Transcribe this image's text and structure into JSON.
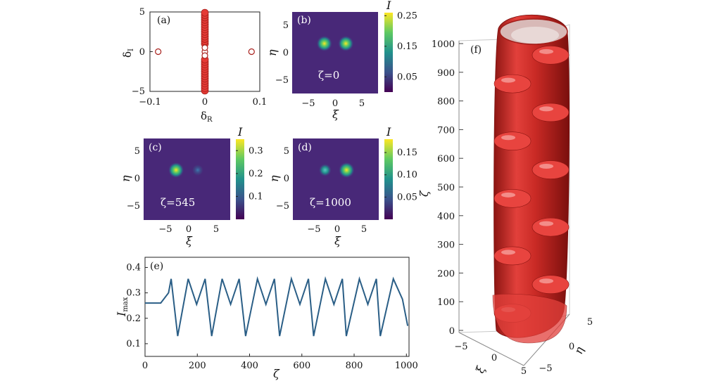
{
  "colors": {
    "red": "#e53a35",
    "red_dark": "#a8201c",
    "viridis_bg": "#482878",
    "line": "#2a5e86"
  },
  "panels": {
    "a": {
      "label": "(a)"
    },
    "b": {
      "label": "(b)",
      "caption": "ζ=0"
    },
    "c": {
      "label": "(c)",
      "caption": "ζ=545"
    },
    "d": {
      "label": "(d)",
      "caption": "ζ=1000"
    },
    "e": {
      "label": "(e)"
    },
    "f": {
      "label": "(f)"
    }
  },
  "chart_data": [
    {
      "id": "a",
      "type": "scatter",
      "xlabel": "δ",
      "xlabel_sub": "R",
      "ylabel": "δ",
      "ylabel_sub": "I",
      "xlim": [
        -0.1,
        0.1
      ],
      "ylim": [
        -5,
        5
      ],
      "xticks": [
        "−0.1",
        "0",
        "0.1"
      ],
      "yticks": [
        "−5",
        "0",
        "5"
      ],
      "series": [
        {
          "style": "filled",
          "points": [
            [
              0,
              -4.9
            ],
            [
              0,
              -4.6
            ],
            [
              0,
              -4.3
            ],
            [
              0,
              -4.0
            ],
            [
              0,
              -3.7
            ],
            [
              0,
              -3.4
            ],
            [
              0,
              -3.1
            ],
            [
              0,
              -2.8
            ],
            [
              0,
              -2.5
            ],
            [
              0,
              -2.2
            ],
            [
              0,
              -1.9
            ],
            [
              0,
              -1.6
            ],
            [
              0,
              -1.3
            ],
            [
              0,
              -1.0
            ],
            [
              0,
              1.0
            ],
            [
              0,
              1.3
            ],
            [
              0,
              1.6
            ],
            [
              0,
              1.9
            ],
            [
              0,
              2.2
            ],
            [
              0,
              2.5
            ],
            [
              0,
              2.8
            ],
            [
              0,
              3.1
            ],
            [
              0,
              3.4
            ],
            [
              0,
              3.7
            ],
            [
              0,
              4.0
            ],
            [
              0,
              4.3
            ],
            [
              0,
              4.6
            ],
            [
              0,
              4.9
            ]
          ]
        },
        {
          "style": "open",
          "points": [
            [
              -0.085,
              0
            ],
            [
              0.085,
              0
            ],
            [
              0,
              0
            ],
            [
              0,
              0.5
            ],
            [
              0,
              -0.5
            ]
          ]
        }
      ]
    },
    {
      "id": "b",
      "type": "heatmap",
      "xlabel": "ξ",
      "ylabel": "η",
      "xlim": [
        -8,
        8
      ],
      "ylim": [
        -8,
        8
      ],
      "xticks": [
        "−5",
        "0",
        "5"
      ],
      "yticks": [
        "−5",
        "0",
        "5"
      ],
      "colorbar": {
        "label": "I",
        "ticks": [
          "0.25",
          "0.15",
          "0.05"
        ],
        "tick_values": [
          0.25,
          0.15,
          0.05
        ],
        "max": 0.26
      },
      "spots": [
        {
          "x": -2,
          "y": 1.8,
          "amp": 0.25
        },
        {
          "x": 2,
          "y": 1.8,
          "amp": 0.25
        }
      ]
    },
    {
      "id": "c",
      "type": "heatmap",
      "xlabel": "ξ",
      "ylabel": "η",
      "xlim": [
        -8,
        8
      ],
      "ylim": [
        -8,
        8
      ],
      "xticks": [
        "−5",
        "0",
        "5"
      ],
      "yticks": [
        "−5",
        "0",
        "5"
      ],
      "colorbar": {
        "label": "I",
        "ticks": [
          "0.3",
          "0.2",
          "0.1"
        ],
        "tick_values": [
          0.3,
          0.2,
          0.1
        ],
        "max": 0.35
      },
      "spots": [
        {
          "x": -2,
          "y": 1.8,
          "amp": 0.34
        },
        {
          "x": 2,
          "y": 1.8,
          "amp": 0.12
        }
      ]
    },
    {
      "id": "d",
      "type": "heatmap",
      "xlabel": "ξ",
      "ylabel": "η",
      "xlim": [
        -8,
        8
      ],
      "ylim": [
        -8,
        8
      ],
      "xticks": [
        "−5",
        "0",
        "5"
      ],
      "yticks": [
        "−5",
        "0",
        "5"
      ],
      "colorbar": {
        "label": "I",
        "ticks": [
          "0.15",
          "0.10",
          "0.05"
        ],
        "tick_values": [
          0.15,
          0.1,
          0.05
        ],
        "max": 0.18
      },
      "spots": [
        {
          "x": -2,
          "y": 1.8,
          "amp": 0.1
        },
        {
          "x": 2,
          "y": 1.8,
          "amp": 0.18
        }
      ]
    },
    {
      "id": "e",
      "type": "line",
      "xlabel": "ζ",
      "ylabel": "I",
      "ylabel_sub": "max",
      "xlim": [
        0,
        1010
      ],
      "ylim": [
        0.05,
        0.44
      ],
      "xticks": [
        0,
        200,
        400,
        600,
        800,
        1000
      ],
      "yticks": [
        0.1,
        0.2,
        0.3,
        0.4
      ],
      "baseline": 0.26,
      "peaks": [
        100,
        165,
        230,
        295,
        360,
        430,
        495,
        560,
        625,
        690,
        755,
        820,
        885,
        950
      ],
      "dips": [
        125,
        255,
        385,
        515,
        645,
        770,
        900
      ],
      "series": [
        {
          "peak": 0.355,
          "dip": 0.13,
          "trough": 0.255
        }
      ]
    },
    {
      "id": "f",
      "type": "surface3d",
      "zlabel": "ζ",
      "xlabel": "ξ",
      "ylabel": "η",
      "zticks": [
        0,
        100,
        200,
        300,
        400,
        500,
        600,
        700,
        800,
        900,
        1000
      ],
      "xticks": [
        "−5",
        "0",
        "5"
      ],
      "yticks": [
        "−5",
        "0",
        "5"
      ],
      "lobes": 10
    }
  ]
}
